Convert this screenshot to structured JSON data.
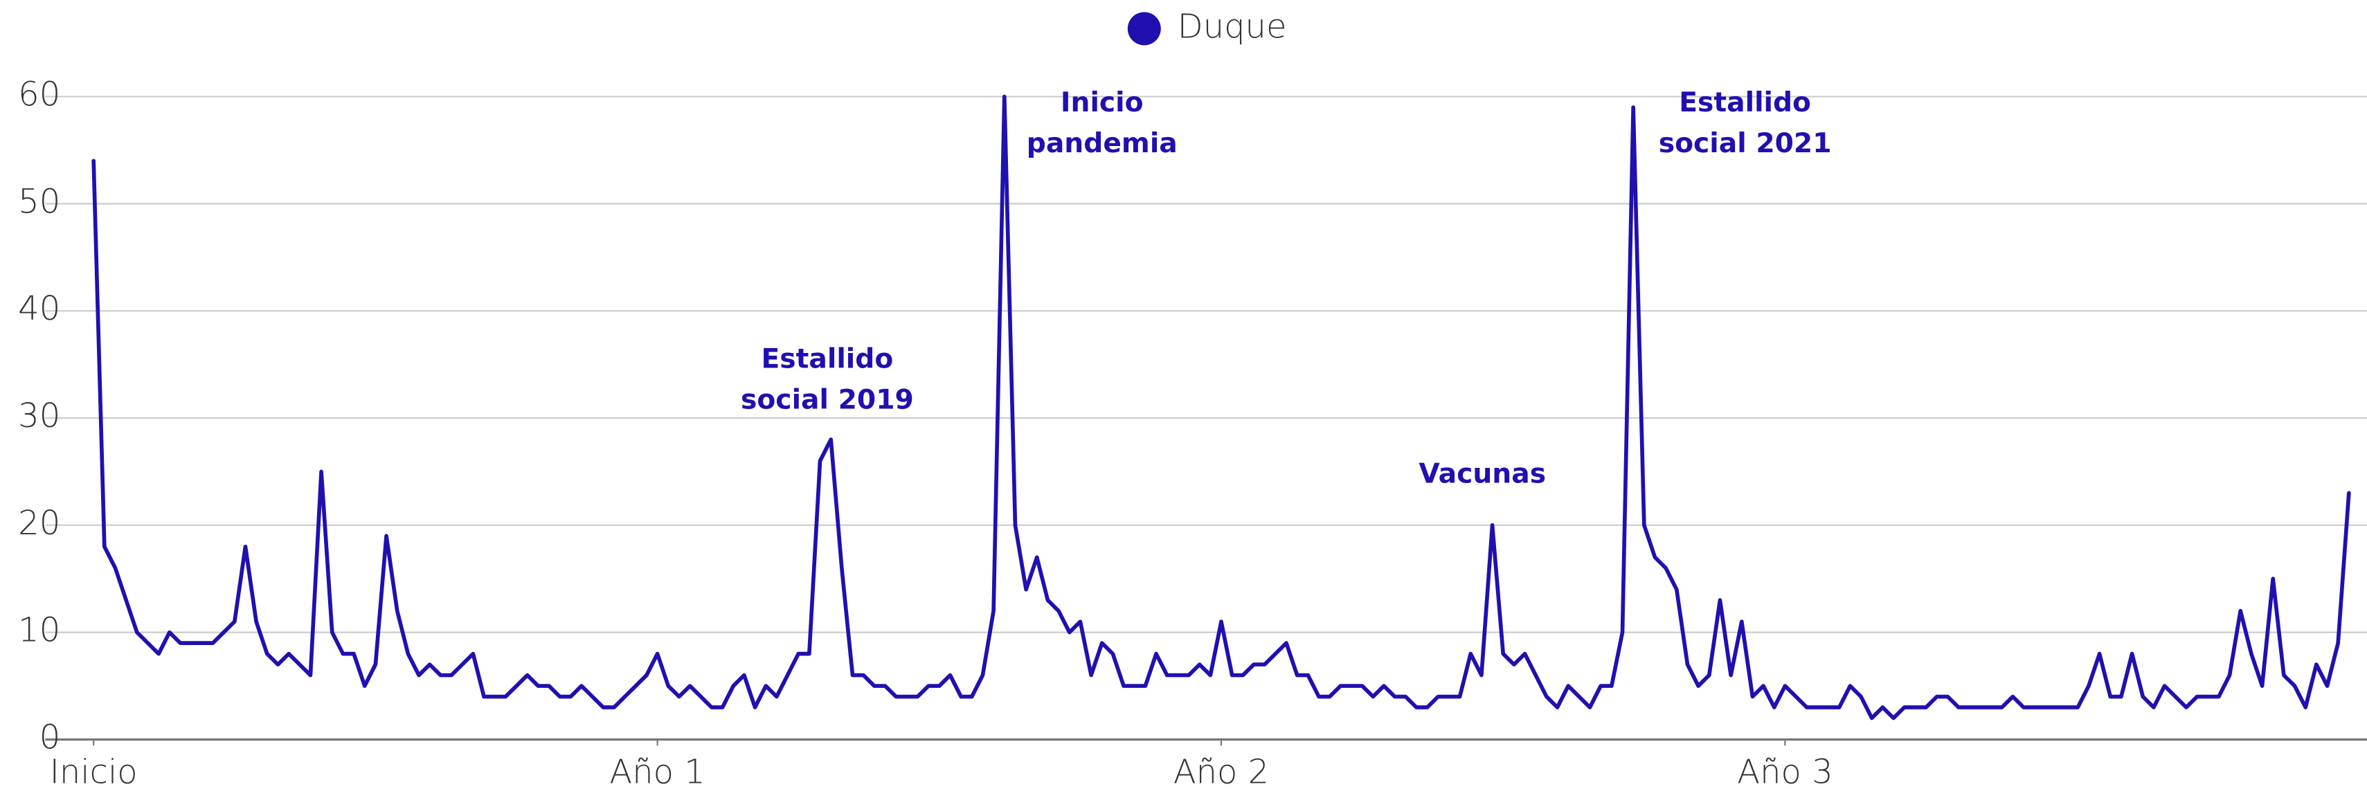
{
  "chart_data": {
    "type": "line",
    "x": [
      0,
      1,
      2,
      3,
      4,
      5,
      6,
      7,
      8,
      9,
      10,
      11,
      12,
      13,
      14,
      15,
      16,
      17,
      18,
      19,
      20,
      21,
      22,
      23,
      24,
      25,
      26,
      27,
      28,
      29,
      30,
      31,
      32,
      33,
      34,
      35,
      36,
      37,
      38,
      39,
      40,
      41,
      42,
      43,
      44,
      45,
      46,
      47,
      48,
      49,
      50,
      51,
      52,
      53,
      54,
      55,
      56,
      57,
      58,
      59,
      60,
      61,
      62,
      63,
      64,
      65,
      66,
      67,
      68,
      69,
      70,
      71,
      72,
      73,
      74,
      75,
      76,
      77,
      78,
      79,
      80,
      81,
      82,
      83,
      84,
      85,
      86,
      87,
      88,
      89,
      90,
      91,
      92,
      93,
      94,
      95,
      96,
      97,
      98,
      99,
      100,
      101,
      102,
      103,
      104,
      105,
      106,
      107,
      108,
      109,
      110,
      111,
      112,
      113,
      114,
      115,
      116,
      117,
      118,
      119,
      120,
      121,
      122,
      123,
      124,
      125,
      126,
      127,
      128,
      129,
      130,
      131,
      132,
      133,
      134,
      135,
      136,
      137,
      138,
      139,
      140,
      141,
      142,
      143,
      144,
      145,
      146,
      147,
      148,
      149,
      150,
      151,
      152,
      153,
      154,
      155,
      156,
      157,
      158,
      159,
      160,
      161,
      162,
      163,
      164,
      165,
      166,
      167,
      168,
      169,
      170,
      171,
      172,
      173,
      174,
      175,
      176,
      177,
      178,
      179,
      180,
      181,
      182,
      183,
      184,
      185,
      186,
      187,
      188,
      189,
      190,
      191,
      192,
      193,
      194,
      195,
      196,
      197,
      198,
      199,
      200,
      201,
      202,
      203,
      204,
      205,
      206,
      207,
      208
    ],
    "series": [
      {
        "name": "Duque",
        "color": "#2010b0",
        "values": [
          54,
          18,
          16,
          13,
          10,
          9,
          8,
          10,
          9,
          9,
          9,
          9,
          10,
          11,
          18,
          11,
          8,
          7,
          8,
          7,
          6,
          25,
          10,
          8,
          8,
          5,
          7,
          19,
          12,
          8,
          6,
          7,
          6,
          6,
          7,
          8,
          4,
          4,
          4,
          5,
          6,
          5,
          5,
          4,
          4,
          5,
          4,
          3,
          3,
          4,
          5,
          6,
          8,
          5,
          4,
          5,
          4,
          3,
          3,
          5,
          6,
          3,
          5,
          4,
          6,
          8,
          8,
          26,
          28,
          16,
          6,
          6,
          5,
          5,
          4,
          4,
          4,
          5,
          5,
          6,
          4,
          4,
          6,
          12,
          60,
          20,
          14,
          17,
          13,
          12,
          10,
          11,
          6,
          9,
          8,
          5,
          5,
          5,
          8,
          6,
          6,
          6,
          7,
          6,
          11,
          6,
          6,
          7,
          7,
          8,
          9,
          6,
          6,
          4,
          4,
          5,
          5,
          5,
          4,
          5,
          4,
          4,
          3,
          3,
          4,
          4,
          4,
          8,
          6,
          20,
          8,
          7,
          8,
          6,
          4,
          3,
          5,
          4,
          3,
          5,
          5,
          10,
          59,
          20,
          17,
          16,
          14,
          7,
          5,
          6,
          13,
          6,
          11,
          4,
          5,
          3,
          5,
          4,
          3,
          3,
          3,
          3,
          5,
          4,
          2,
          3,
          2,
          3,
          3,
          3,
          4,
          4,
          3,
          3,
          3,
          3,
          3,
          4,
          3,
          3,
          3,
          3,
          3,
          3,
          5,
          8,
          4,
          4,
          8,
          4,
          3,
          5,
          4,
          3,
          4,
          4,
          4,
          6,
          12,
          8,
          5,
          15,
          6,
          5,
          3,
          7,
          5,
          9,
          23
        ]
      }
    ],
    "xlim": [
      0,
      208
    ],
    "xticks": [
      {
        "value": 0,
        "label": "Inicio"
      },
      {
        "value": 52,
        "label": "Año 1"
      },
      {
        "value": 104,
        "label": "Año 2"
      },
      {
        "value": 156,
        "label": "Año 3"
      }
    ],
    "ylim": [
      0,
      60
    ],
    "yticks": [
      0,
      10,
      20,
      30,
      40,
      50,
      60
    ],
    "grid": true,
    "legend": "top",
    "annotations": [
      {
        "lines": [
          "Estallido",
          "social 2019"
        ]
      },
      {
        "lines": [
          "Inicio",
          "pandemia"
        ]
      },
      {
        "lines": [
          "Vacunas"
        ]
      },
      {
        "lines": [
          "Estallido",
          "social 2021"
        ]
      }
    ]
  }
}
